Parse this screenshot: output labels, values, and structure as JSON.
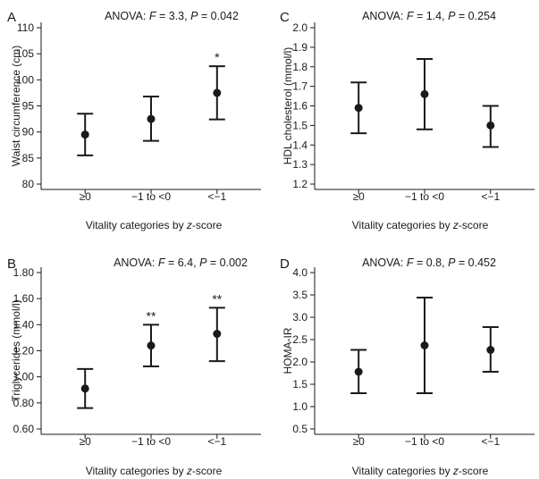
{
  "chart_data": [
    {
      "panel": "A",
      "type": "scatter",
      "anova": {
        "prefix": "ANOVA: ",
        "f_label": "F",
        "f_value": " = 3.3, ",
        "p_label": "P",
        "p_value": " = 0.042"
      },
      "ylabel": "Waist circumference (cm)",
      "xlabel": {
        "prefix": "Vitality categories by ",
        "italic": "z",
        "suffix": "-score"
      },
      "categories": [
        "≥0",
        "−1 to <0",
        "<−1"
      ],
      "ylim": [
        80,
        110
      ],
      "yticks": [
        80,
        85,
        90,
        95,
        100,
        105,
        110
      ],
      "ytick_labels": [
        "80",
        "85",
        "90",
        "95",
        "100",
        "105",
        "110"
      ],
      "means": [
        89.5,
        92.5,
        97.5
      ],
      "lower": [
        85.5,
        88.3,
        92.4
      ],
      "upper": [
        93.5,
        96.8,
        102.6
      ],
      "significance": [
        "",
        "",
        "*"
      ]
    },
    {
      "panel": "B",
      "type": "scatter",
      "anova": {
        "prefix": "ANOVA: ",
        "f_label": "F",
        "f_value": " = 6.4, ",
        "p_label": "P",
        "p_value": " = 0.002"
      },
      "ylabel": "Triglycerides (mmol/l)",
      "xlabel": {
        "prefix": "Vitality categories by ",
        "italic": "z",
        "suffix": "-score"
      },
      "categories": [
        "≥0",
        "−1 to <0",
        "<−1"
      ],
      "ylim": [
        0.6,
        1.8
      ],
      "yticks": [
        0.6,
        0.8,
        1.0,
        1.2,
        1.4,
        1.6,
        1.8
      ],
      "ytick_labels": [
        "0.60",
        "0.80",
        "1.00",
        "1.20",
        "1.40",
        "1.60",
        "1.80"
      ],
      "means": [
        0.91,
        1.24,
        1.33
      ],
      "lower": [
        0.76,
        1.08,
        1.12
      ],
      "upper": [
        1.06,
        1.4,
        1.53
      ],
      "significance": [
        "",
        "**",
        "**"
      ]
    },
    {
      "panel": "C",
      "type": "scatter",
      "anova": {
        "prefix": "ANOVA: ",
        "f_label": "F",
        "f_value": " = 1.4, ",
        "p_label": "P",
        "p_value": " = 0.254"
      },
      "ylabel": "HDL cholesterol (mmol/l)",
      "xlabel": {
        "prefix": "Vitality categories by ",
        "italic": "z",
        "suffix": "-score"
      },
      "categories": [
        "≥0",
        "−1 to <0",
        "<−1"
      ],
      "ylim": [
        1.2,
        2.0
      ],
      "yticks": [
        1.2,
        1.3,
        1.4,
        1.5,
        1.6,
        1.7,
        1.8,
        1.9,
        2.0
      ],
      "ytick_labels": [
        "1.2",
        "1.3",
        "1.4",
        "1.5",
        "1.6",
        "1.7",
        "1.8",
        "1.9",
        "2.0"
      ],
      "means": [
        1.59,
        1.66,
        1.5
      ],
      "lower": [
        1.46,
        1.48,
        1.39
      ],
      "upper": [
        1.72,
        1.84,
        1.6
      ],
      "significance": [
        "",
        "",
        ""
      ]
    },
    {
      "panel": "D",
      "type": "scatter",
      "anova": {
        "prefix": "ANOVA: ",
        "f_label": "F",
        "f_value": " = 0.8, ",
        "p_label": "P",
        "p_value": " = 0.452"
      },
      "ylabel": "HOMA-IR",
      "xlabel": {
        "prefix": "Vitality categories by ",
        "italic": "z",
        "suffix": "-score"
      },
      "categories": [
        "≥0",
        "−1 to <0",
        "<−1"
      ],
      "ylim": [
        0.5,
        4.0
      ],
      "yticks": [
        0.5,
        1.0,
        1.5,
        2.0,
        2.5,
        3.0,
        3.5,
        4.0
      ],
      "ytick_labels": [
        "0.5",
        "1.0",
        "1.5",
        "2.0",
        "2.5",
        "3.0",
        "3.5",
        "4.0"
      ],
      "means": [
        1.78,
        2.37,
        2.27
      ],
      "lower": [
        1.3,
        1.3,
        1.78
      ],
      "upper": [
        2.27,
        3.44,
        2.78
      ],
      "significance": [
        "",
        "",
        ""
      ]
    }
  ]
}
